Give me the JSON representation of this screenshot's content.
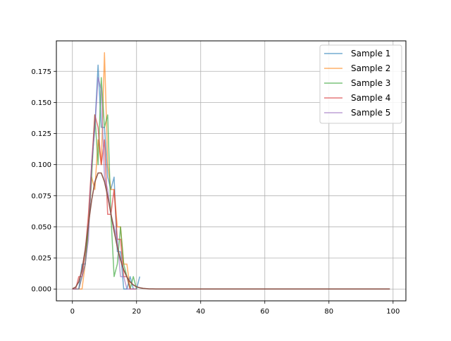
{
  "chart_data": {
    "type": "line",
    "title": "",
    "xlabel": "",
    "ylabel": "",
    "xlim": [
      -5,
      104
    ],
    "ylim": [
      -0.0095,
      0.1995
    ],
    "xticks": [
      0,
      20,
      40,
      60,
      80,
      100
    ],
    "xtick_labels": [
      "0",
      "20",
      "40",
      "60",
      "80",
      "100"
    ],
    "yticks": [
      0.0,
      0.025,
      0.05,
      0.075,
      0.1,
      0.125,
      0.15,
      0.175
    ],
    "ytick_labels": [
      "0.000",
      "0.025",
      "0.050",
      "0.075",
      "0.100",
      "0.125",
      "0.150",
      "0.175"
    ],
    "grid": true,
    "legend_position": "top-right",
    "series": [
      {
        "name": "Sample 1",
        "color": "#1f77b4",
        "x": [
          0,
          1,
          2,
          3,
          4,
          5,
          6,
          7,
          8,
          9,
          10,
          11,
          12,
          13,
          14,
          15,
          16,
          17,
          18,
          19,
          20,
          21
        ],
        "y": [
          0,
          0,
          0,
          0.02,
          0.02,
          0.05,
          0.1,
          0.13,
          0.18,
          0.13,
          0.13,
          0.09,
          0.08,
          0.09,
          0.03,
          0.03,
          0,
          0,
          0.01,
          0,
          0,
          0.01
        ]
      },
      {
        "name": "Sample 2",
        "color": "#ff7f0e",
        "x": [
          0,
          1,
          2,
          3,
          4,
          5,
          6,
          7,
          8,
          9,
          10,
          11,
          12,
          13,
          14,
          15,
          16,
          17,
          18,
          19,
          20
        ],
        "y": [
          0,
          0,
          0,
          0,
          0.02,
          0.05,
          0.09,
          0.08,
          0.12,
          0.1,
          0.19,
          0.1,
          0.08,
          0.08,
          0.05,
          0.05,
          0.02,
          0.02,
          0,
          0,
          0
        ]
      },
      {
        "name": "Sample 3",
        "color": "#2ca02c",
        "x": [
          0,
          1,
          2,
          3,
          4,
          5,
          6,
          7,
          8,
          9,
          10,
          11,
          12,
          13,
          14,
          15,
          16,
          17,
          18,
          19,
          20
        ],
        "y": [
          0,
          0,
          0,
          0.01,
          0.02,
          0.05,
          0.09,
          0.14,
          0.1,
          0.17,
          0.13,
          0.14,
          0.06,
          0.01,
          0.02,
          0.05,
          0.02,
          0.01,
          0,
          0.01,
          0
        ]
      },
      {
        "name": "Sample 4",
        "color": "#d62728",
        "x": [
          0,
          1,
          2,
          3,
          4,
          5,
          6,
          7,
          8,
          9,
          10,
          11,
          12,
          13,
          14,
          15,
          16,
          17,
          18,
          19,
          20
        ],
        "y": [
          0,
          0,
          0.01,
          0.01,
          0.03,
          0.06,
          0.1,
          0.14,
          0.13,
          0.1,
          0.12,
          0.06,
          0.06,
          0.08,
          0.04,
          0.04,
          0.01,
          0.01,
          0,
          0,
          0
        ]
      },
      {
        "name": "Sample 5",
        "color": "#9467bd",
        "x": [
          0,
          1,
          2,
          3,
          4,
          5,
          6,
          7,
          8,
          9,
          10,
          11,
          12,
          13,
          14,
          15,
          16,
          17,
          18,
          19,
          20
        ],
        "y": [
          0,
          0,
          0,
          0.01,
          0.02,
          0.04,
          0.1,
          0.13,
          0.17,
          0.16,
          0.09,
          0.08,
          0.06,
          0.05,
          0.04,
          0.01,
          0.01,
          0,
          0,
          0,
          0
        ]
      },
      {
        "name": "",
        "color": "#8c564b",
        "x": [
          0,
          1,
          2,
          3,
          4,
          5,
          6,
          7,
          8,
          9,
          10,
          11,
          12,
          13,
          14,
          15,
          16,
          17,
          18,
          19,
          20,
          21,
          22,
          23,
          24,
          25,
          26,
          27,
          28,
          29,
          30,
          35,
          40,
          50,
          60,
          70,
          80,
          90,
          99
        ],
        "y": [
          0.0002,
          0.0015,
          0.0058,
          0.0156,
          0.0318,
          0.0522,
          0.0715,
          0.0861,
          0.0933,
          0.0933,
          0.0864,
          0.0747,
          0.0607,
          0.0466,
          0.0338,
          0.0234,
          0.0154,
          0.0096,
          0.0058,
          0.0033,
          0.0018,
          0.001,
          0.0005,
          0.0003,
          0.0001,
          0.0001,
          0,
          0,
          0,
          0,
          0,
          0,
          0,
          0,
          0,
          0,
          0,
          0,
          0
        ]
      }
    ]
  }
}
